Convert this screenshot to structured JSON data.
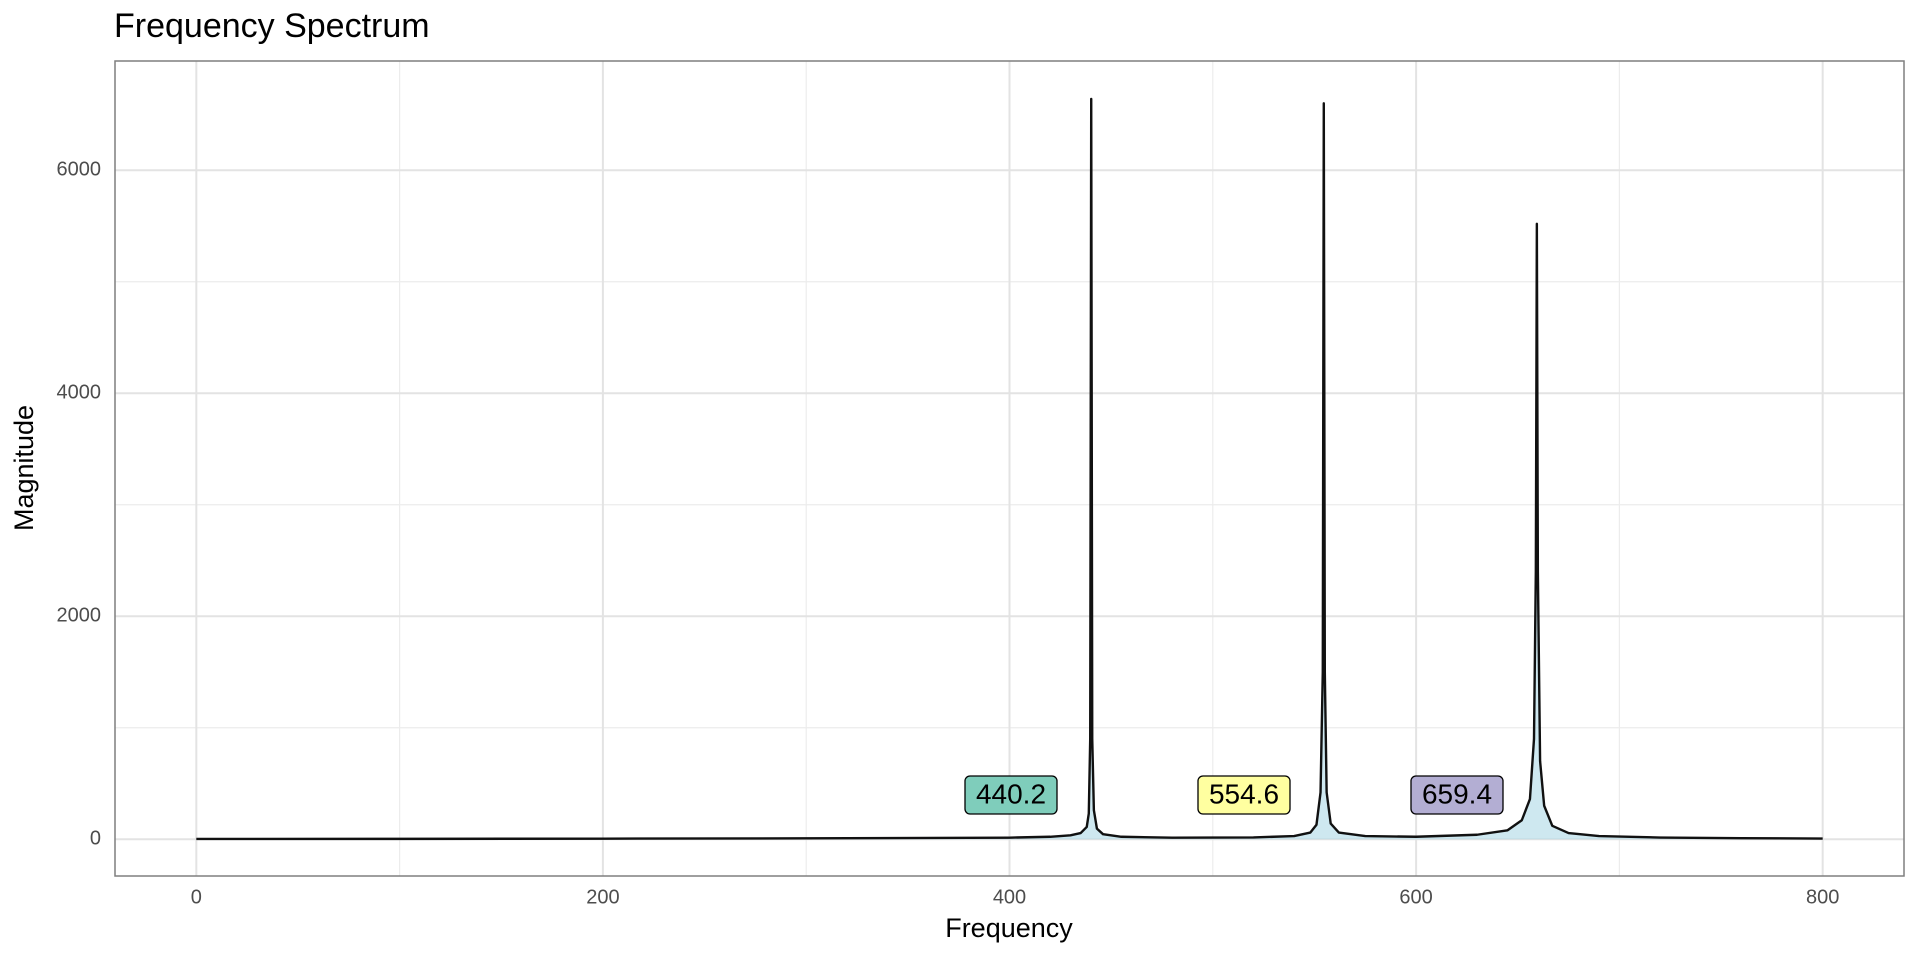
{
  "chart_data": {
    "type": "line",
    "title": "Frequency Spectrum",
    "x_label": "Frequency",
    "y_label": "Magnitude",
    "x": [
      0,
      100,
      200,
      300,
      400,
      420,
      430,
      435,
      438,
      439,
      439.7,
      440.2,
      440.7,
      441.5,
      443,
      446,
      455,
      480,
      520,
      540,
      548,
      551,
      553,
      554.1,
      554.6,
      555.1,
      556,
      558,
      562,
      575,
      600,
      630,
      645,
      652,
      656,
      658,
      658.9,
      659.4,
      659.9,
      661,
      663,
      667,
      675,
      690,
      720,
      760,
      800
    ],
    "values": [
      2,
      3,
      5,
      8,
      14,
      22,
      35,
      55,
      110,
      230,
      900,
      6640,
      900,
      260,
      95,
      45,
      22,
      14,
      16,
      28,
      60,
      130,
      420,
      1500,
      6600,
      1500,
      420,
      140,
      60,
      28,
      22,
      40,
      80,
      170,
      360,
      900,
      2400,
      5520,
      2400,
      700,
      300,
      120,
      55,
      28,
      15,
      9,
      6
    ],
    "color": "#111111",
    "fill_color": "#add8e6",
    "xlim": [
      -40,
      840
    ],
    "xticks": [
      0,
      200,
      400,
      600,
      800
    ],
    "ylim": [
      -330,
      6980
    ],
    "yticks": [
      0,
      2000,
      4000,
      6000
    ],
    "grid": true,
    "minor_grid": true,
    "annotations": [
      {
        "text": "440.2",
        "fill": "#7fcdbb"
      },
      {
        "text": "554.6",
        "fill": "#ffffa0"
      },
      {
        "text": "659.4",
        "fill": "#b3aed3"
      }
    ]
  }
}
